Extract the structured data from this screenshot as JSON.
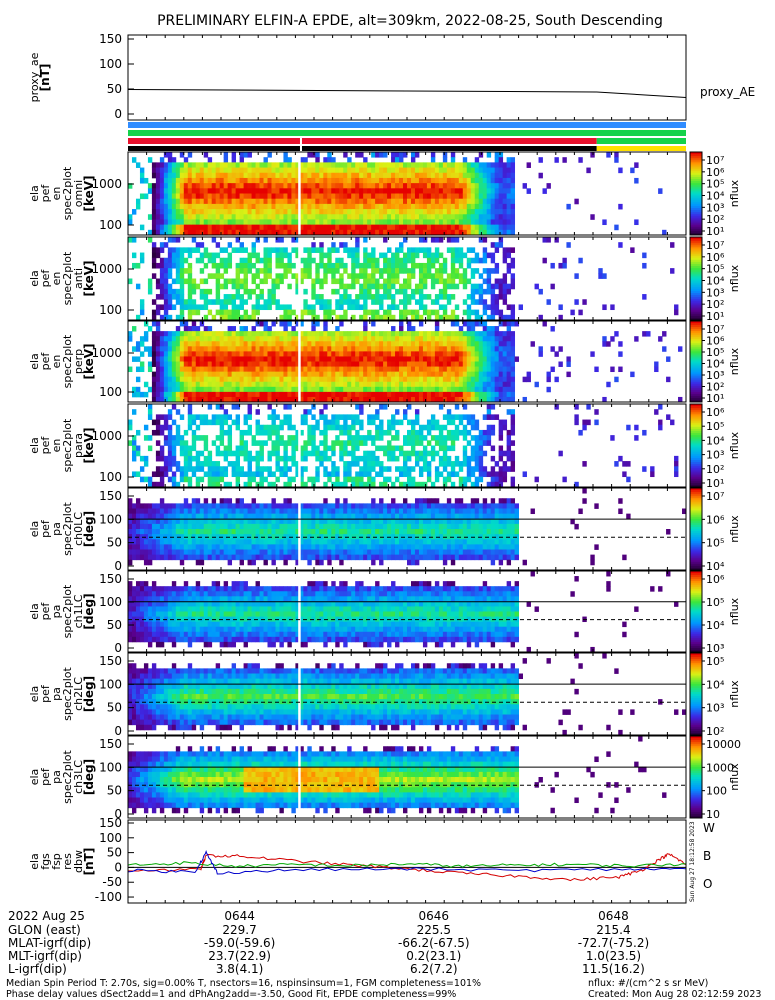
{
  "title": "PRELIMINARY ELFIN-A EPDE, alt=309km, 2022-08-25, South Descending",
  "colors": {
    "bar_blue": "#2f8cff",
    "bar_green": "#14d24a",
    "bar_red": "#e8102c",
    "bar_black": "#000000",
    "bar_yellow": "#ffe000",
    "series_w": "#d40000",
    "series_b": "#00a800",
    "series_o": "#0000cc"
  },
  "x_axis": {
    "tick_labels": [
      "0644",
      "0646",
      "0648"
    ]
  },
  "chart_data": [
    {
      "type": "line",
      "ylabel": [
        "proxy_ae",
        "[nT]"
      ],
      "yticks": [
        0,
        50,
        100,
        150
      ],
      "ylim": [
        0,
        150
      ],
      "series": [
        {
          "name": "proxy_AE",
          "x": [
            0,
            0.84,
            1.0
          ],
          "values": [
            49,
            44,
            33
          ]
        }
      ]
    },
    {
      "type": "heatmap",
      "ylabel": [
        "ela",
        "pef",
        "en",
        "spec2plot",
        "omni",
        "[keV]"
      ],
      "yticks": [
        "100",
        "1000"
      ],
      "colorbar": {
        "label": "nflux",
        "ticks": [
          "10⁷",
          "10⁶",
          "10⁵",
          "10⁴",
          "10³",
          "10²",
          "10¹"
        ]
      }
    },
    {
      "type": "heatmap",
      "ylabel": [
        "ela",
        "pef",
        "en",
        "spec2plot",
        "anti",
        "[keV]"
      ],
      "yticks": [
        "100",
        "1000"
      ],
      "colorbar": {
        "label": "nflux",
        "ticks": [
          "10⁷",
          "10⁶",
          "10⁵",
          "10⁴",
          "10³",
          "10²",
          "10¹"
        ]
      }
    },
    {
      "type": "heatmap",
      "ylabel": [
        "ela",
        "pef",
        "en",
        "spec2plot",
        "perp",
        "[keV]"
      ],
      "yticks": [
        "100",
        "1000"
      ],
      "colorbar": {
        "label": "nflux",
        "ticks": [
          "10⁷",
          "10⁶",
          "10⁵",
          "10⁴",
          "10³",
          "10²",
          "10¹"
        ]
      }
    },
    {
      "type": "heatmap",
      "ylabel": [
        "ela",
        "pef",
        "en",
        "spec2plot",
        "para",
        "[keV]"
      ],
      "yticks": [
        "100",
        "1000"
      ],
      "colorbar": {
        "label": "nflux",
        "ticks": [
          "10⁶",
          "10⁵",
          "10⁴",
          "10³",
          "10²",
          "10¹"
        ]
      }
    },
    {
      "type": "heatmap",
      "ylabel": [
        "ela",
        "pef",
        "pa",
        "spec2plot",
        "ch0LC",
        "[deg]"
      ],
      "yticks": [
        "0",
        "50",
        "100",
        "150"
      ],
      "colorbar": {
        "label": "nflux",
        "ticks": [
          "10⁷",
          "10⁶",
          "10⁵",
          "10⁴"
        ]
      }
    },
    {
      "type": "heatmap",
      "ylabel": [
        "ela",
        "pef",
        "pa",
        "spec2plot",
        "ch1LC",
        "[deg]"
      ],
      "yticks": [
        "0",
        "50",
        "100",
        "150"
      ],
      "colorbar": {
        "label": "nflux",
        "ticks": [
          "10⁶",
          "10⁵",
          "10⁴",
          "10³"
        ]
      }
    },
    {
      "type": "heatmap",
      "ylabel": [
        "ela",
        "pef",
        "pa",
        "spec2plot",
        "ch2LC",
        "[deg]"
      ],
      "yticks": [
        "0",
        "50",
        "100",
        "150"
      ],
      "colorbar": {
        "label": "nflux",
        "ticks": [
          "10⁵",
          "10⁴",
          "10³",
          "10²"
        ]
      }
    },
    {
      "type": "heatmap",
      "ylabel": [
        "ela",
        "pef",
        "pa",
        "spec2plot",
        "ch3LC",
        "[deg]"
      ],
      "yticks": [
        "0",
        "50",
        "100",
        "150"
      ],
      "colorbar": {
        "label": "nflux",
        "ticks": [
          "10000",
          "1000",
          "100",
          "10"
        ]
      }
    },
    {
      "type": "line",
      "ylabel": [
        "ela",
        "fgs",
        "fsp",
        "res",
        "dbw",
        "[nT]"
      ],
      "yticks": [
        -100,
        -50,
        0,
        50,
        100,
        150
      ],
      "ylim": [
        -110,
        150
      ],
      "series": [
        {
          "name": "W",
          "x": [
            0,
            0.13,
            0.14,
            0.2,
            0.3,
            0.4,
            0.5,
            0.6,
            0.7,
            0.8,
            0.88,
            0.92,
            0.95,
            0.97,
            1.0
          ],
          "values": [
            -10,
            -8,
            40,
            38,
            22,
            8,
            -5,
            -20,
            -30,
            -42,
            -32,
            -10,
            25,
            45,
            10
          ]
        },
        {
          "name": "B",
          "x": [
            0,
            0.1,
            0.2,
            0.3,
            0.4,
            0.5,
            0.6,
            0.7,
            0.8,
            0.9,
            1.0
          ],
          "values": [
            8,
            15,
            4,
            10,
            6,
            12,
            4,
            8,
            10,
            5,
            12
          ]
        },
        {
          "name": "O",
          "x": [
            0,
            0.12,
            0.14,
            0.16,
            0.3,
            0.5,
            0.7,
            0.9,
            1.0
          ],
          "values": [
            -10,
            -15,
            50,
            -18,
            -8,
            -5,
            -10,
            -6,
            -5
          ]
        }
      ]
    }
  ],
  "bottom_table": {
    "date": "2022 Aug 25",
    "rows": [
      {
        "label": "GLON (east)",
        "values": [
          "229.7",
          "225.5",
          "215.4"
        ]
      },
      {
        "label": "MLAT-igrf(dip)",
        "values": [
          "-59.0(-59.6)",
          "-66.2(-67.5)",
          "-72.7(-75.2)"
        ]
      },
      {
        "label": "MLT-igrf(dip)",
        "values": [
          "23.7(22.9)",
          "0.2(23.1)",
          "1.0(23.5)"
        ]
      },
      {
        "label": "L-igrf(dip)",
        "values": [
          "3.8(4.1)",
          "6.2(7.2)",
          "11.5(16.2)"
        ]
      }
    ]
  },
  "footer": {
    "line1": "Median Spin Period T: 2.70s, sig=0.00% T, nsectors=16, nspinsinsum=1, FGM completeness=101%",
    "line2": "Phase delay values dSect2add=1 and dPhAng2add=-3.50, Good Fit, EPDE completeness=99%",
    "units": "nflux: #/(cm^2 s sr MeV)",
    "created": "Created: Mon Aug 28 02:12:59 2023",
    "side_stamp": "Sun Aug 27 18:12:58 2023"
  }
}
